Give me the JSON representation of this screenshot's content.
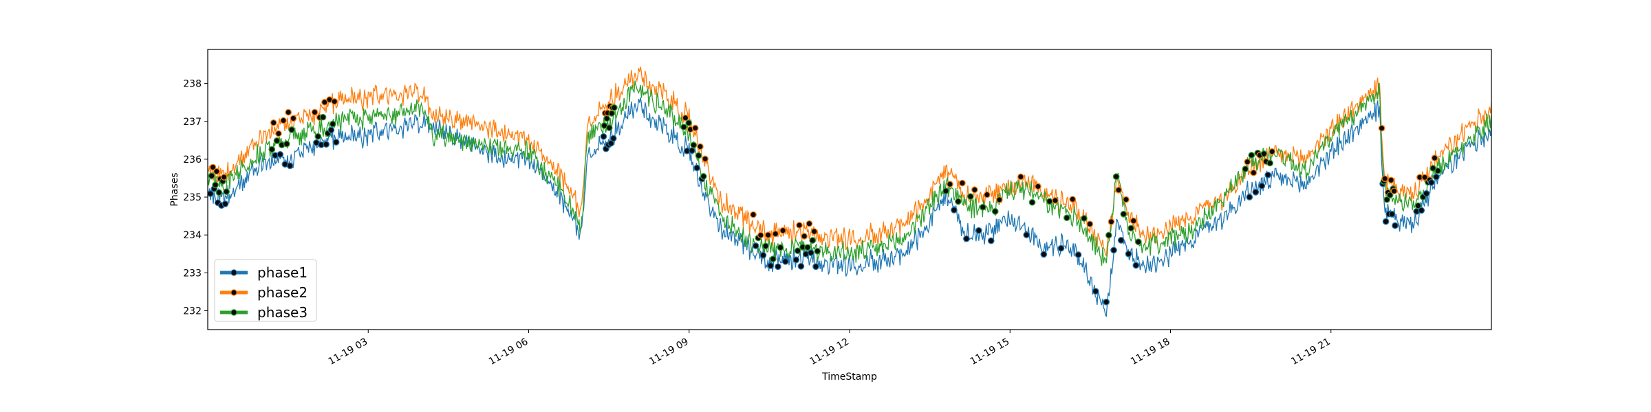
{
  "chart_data": {
    "type": "line",
    "xlabel": "TimeStamp",
    "ylabel": "Phases",
    "x_ticks": [
      "11-19 03",
      "11-19 06",
      "11-19 09",
      "11-19 12",
      "11-19 15",
      "11-19 18",
      "11-19 21"
    ],
    "x_tick_hours": [
      3,
      6,
      9,
      12,
      15,
      18,
      21
    ],
    "xlim_hours": [
      0,
      24
    ],
    "y_ticks": [
      232,
      233,
      234,
      235,
      236,
      237,
      238
    ],
    "ylim": [
      231.5,
      238.9
    ],
    "grid": false,
    "legend_position": "lower-left",
    "anomaly_markers": "black dots with series-colored edge",
    "series": [
      {
        "name": "phase1",
        "color": "#1f77b4",
        "x_hours": [
          0,
          0.3,
          1,
          1.5,
          2,
          2.5,
          3,
          3.5,
          4,
          4.2,
          5,
          5.5,
          6,
          6.3,
          6.6,
          7.0,
          7.1,
          7.5,
          8,
          8.5,
          9,
          9.3,
          9.6,
          10,
          10.5,
          11,
          11.5,
          12,
          12.5,
          13,
          13.5,
          13.8,
          14.2,
          14.6,
          15,
          15.3,
          15.6,
          16,
          16.3,
          16.6,
          16.8,
          17,
          17.2,
          17.5,
          18,
          18.5,
          19,
          19.5,
          20,
          20.5,
          21,
          21.5,
          21.9,
          22.0,
          22.5,
          23,
          23.5,
          24
        ],
        "values": [
          235.2,
          235.0,
          235.9,
          236.0,
          236.4,
          236.6,
          236.6,
          236.8,
          237.0,
          236.9,
          236.3,
          236.0,
          236.0,
          235.5,
          235.0,
          234.0,
          236.2,
          236.5,
          237.4,
          236.9,
          236.2,
          235.0,
          234.2,
          233.8,
          233.3,
          233.4,
          233.3,
          233.2,
          233.3,
          233.5,
          234.3,
          235.0,
          234.0,
          234.0,
          234.5,
          234.2,
          233.6,
          233.8,
          233.4,
          232.5,
          232.0,
          234.3,
          233.6,
          233.2,
          233.5,
          234.0,
          234.5,
          235.2,
          235.5,
          235.3,
          236.2,
          236.8,
          237.4,
          234.6,
          234.2,
          235.5,
          236.2,
          236.8
        ]
      },
      {
        "name": "phase2",
        "color": "#ff7f0e",
        "x_hours": [
          0,
          0.3,
          1,
          1.5,
          2,
          2.5,
          3,
          3.5,
          4,
          4.2,
          5,
          5.5,
          6,
          6.3,
          6.6,
          7.0,
          7.1,
          7.5,
          8,
          8.5,
          9,
          9.3,
          9.6,
          10,
          10.5,
          11,
          11.5,
          12,
          12.5,
          13,
          13.5,
          13.8,
          14.2,
          14.6,
          15,
          15.3,
          15.6,
          16,
          16.3,
          16.6,
          16.8,
          17,
          17.2,
          17.5,
          18,
          18.5,
          19,
          19.5,
          20,
          20.5,
          21,
          21.5,
          21.9,
          22.0,
          22.5,
          23,
          23.5,
          24
        ],
        "values": [
          235.8,
          235.6,
          236.6,
          237.0,
          237.2,
          237.6,
          237.6,
          237.7,
          237.8,
          237.2,
          236.9,
          236.7,
          236.5,
          236.0,
          235.6,
          234.6,
          237.0,
          237.5,
          238.2,
          237.8,
          237.1,
          235.9,
          234.9,
          234.5,
          234.0,
          234.1,
          234.0,
          233.9,
          234.0,
          234.3,
          235.0,
          235.7,
          235.0,
          235.0,
          235.3,
          235.5,
          235.1,
          234.9,
          234.6,
          234.0,
          233.6,
          235.4,
          234.6,
          234.0,
          234.2,
          234.6,
          235.0,
          235.8,
          236.1,
          236.0,
          236.8,
          237.4,
          238.0,
          235.4,
          235.0,
          236.0,
          236.7,
          237.4
        ]
      },
      {
        "name": "phase3",
        "color": "#2ca02c",
        "x_hours": [
          0,
          0.3,
          1,
          1.5,
          2,
          2.5,
          3,
          3.5,
          4,
          4.2,
          5,
          5.5,
          6,
          6.3,
          6.6,
          7.0,
          7.1,
          7.5,
          8,
          8.5,
          9,
          9.3,
          9.6,
          10,
          10.5,
          11,
          11.5,
          12,
          12.5,
          13,
          13.5,
          13.8,
          14.2,
          14.6,
          15,
          15.3,
          15.6,
          16,
          16.3,
          16.6,
          16.8,
          17,
          17.2,
          17.5,
          18,
          18.5,
          19,
          19.5,
          20,
          20.5,
          21,
          21.5,
          21.9,
          22.0,
          22.5,
          23,
          23.5,
          24
        ],
        "values": [
          235.5,
          235.3,
          236.2,
          236.5,
          236.8,
          237.0,
          237.1,
          237.2,
          237.4,
          236.6,
          236.5,
          236.3,
          236.2,
          235.7,
          235.2,
          234.2,
          236.6,
          237.0,
          237.9,
          237.4,
          236.7,
          235.4,
          234.5,
          234.0,
          233.6,
          233.7,
          233.6,
          233.5,
          233.6,
          233.9,
          234.8,
          235.3,
          234.8,
          234.6,
          235.2,
          235.2,
          234.9,
          234.6,
          234.4,
          233.7,
          233.3,
          235.6,
          234.2,
          233.7,
          233.9,
          234.2,
          235.0,
          235.9,
          236.2,
          235.7,
          236.6,
          237.2,
          237.9,
          235.2,
          234.7,
          235.7,
          236.4,
          237.0
        ]
      }
    ]
  }
}
